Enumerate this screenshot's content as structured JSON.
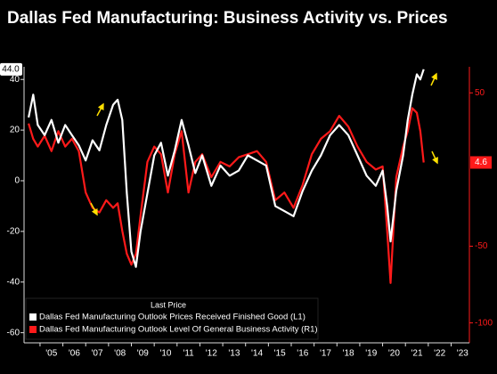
{
  "chart_data": {
    "type": "line",
    "title": "Dallas Fed Manufacturing: Business Activity vs. Prices",
    "legend_title": "Last Price",
    "legend": "lower left",
    "grid": false,
    "x": [
      2004.5,
      2004.7,
      2004.9,
      2005.2,
      2005.5,
      2005.8,
      2006.1,
      2006.4,
      2006.7,
      2007.0,
      2007.3,
      2007.6,
      2007.9,
      2008.2,
      2008.4,
      2008.6,
      2008.8,
      2009.0,
      2009.2,
      2009.4,
      2009.7,
      2010.0,
      2010.3,
      2010.6,
      2010.9,
      2011.2,
      2011.5,
      2011.8,
      2012.1,
      2012.5,
      2012.9,
      2013.3,
      2013.7,
      2014.1,
      2014.5,
      2014.9,
      2015.3,
      2015.7,
      2016.1,
      2016.5,
      2016.9,
      2017.3,
      2017.7,
      2018.1,
      2018.5,
      2018.9,
      2019.3,
      2019.7,
      2020.0,
      2020.2,
      2020.35,
      2020.6,
      2020.9,
      2021.1,
      2021.3,
      2021.5,
      2021.65,
      2021.8
    ],
    "xlim": [
      2004.3,
      2023.8
    ],
    "xticks": [
      {
        "value": 2005,
        "label": "'05"
      },
      {
        "value": 2006,
        "label": "'06"
      },
      {
        "value": 2007,
        "label": "'07"
      },
      {
        "value": 2008,
        "label": "'08"
      },
      {
        "value": 2009,
        "label": "'09"
      },
      {
        "value": 2010,
        "label": "'10"
      },
      {
        "value": 2011,
        "label": "'11"
      },
      {
        "value": 2012,
        "label": "'12"
      },
      {
        "value": 2013,
        "label": "'13"
      },
      {
        "value": 2014,
        "label": "'14"
      },
      {
        "value": 2015,
        "label": "'15"
      },
      {
        "value": 2016,
        "label": "'16"
      },
      {
        "value": 2017,
        "label": "'17"
      },
      {
        "value": 2018,
        "label": "'18"
      },
      {
        "value": 2019,
        "label": "'19"
      },
      {
        "value": 2020,
        "label": "'20"
      },
      {
        "value": 2021,
        "label": "'21"
      },
      {
        "value": 2022,
        "label": "'22"
      },
      {
        "value": 2023,
        "label": "'23"
      }
    ],
    "ylim": [
      -64,
      45
    ],
    "yticks": [
      40,
      20,
      0,
      -20,
      -40,
      -60
    ],
    "y2lim": [
      -113,
      67
    ],
    "y2ticks": [
      50,
      -50,
      -100
    ],
    "series": [
      {
        "name": "Dallas Fed Manufacturing Outlook Prices Received Finished Good  (L1)",
        "color": "#ffffff",
        "axis": "y",
        "last_label": "44.0",
        "values": [
          25,
          34,
          22,
          18,
          24,
          15,
          22,
          18,
          14,
          8,
          16,
          12,
          22,
          30,
          32,
          24,
          -5,
          -28,
          -34,
          -20,
          -5,
          10,
          15,
          2,
          12,
          24,
          14,
          3,
          10,
          -2,
          6,
          2,
          4,
          10,
          8,
          6,
          -10,
          -12,
          -14,
          -4,
          4,
          10,
          18,
          22,
          18,
          10,
          2,
          -2,
          4,
          -10,
          -24,
          -4,
          10,
          24,
          34,
          42,
          40,
          44
        ]
      },
      {
        "name": "Dallas Fed Manufacturing Outlook Level Of General Business Activity  (R1)",
        "color": "#ff1a1a",
        "axis": "y2",
        "last_label": "4.6",
        "values": [
          30,
          20,
          15,
          22,
          12,
          25,
          15,
          20,
          12,
          -15,
          -25,
          -28,
          -20,
          -25,
          -22,
          -40,
          -55,
          -62,
          -55,
          -30,
          5,
          15,
          10,
          -15,
          10,
          25,
          -15,
          5,
          10,
          -5,
          5,
          2,
          8,
          10,
          12,
          5,
          -20,
          -15,
          -25,
          -10,
          10,
          20,
          25,
          35,
          28,
          15,
          5,
          0,
          2,
          -40,
          -74,
          -5,
          15,
          25,
          40,
          37,
          25,
          4.6
        ]
      }
    ]
  }
}
